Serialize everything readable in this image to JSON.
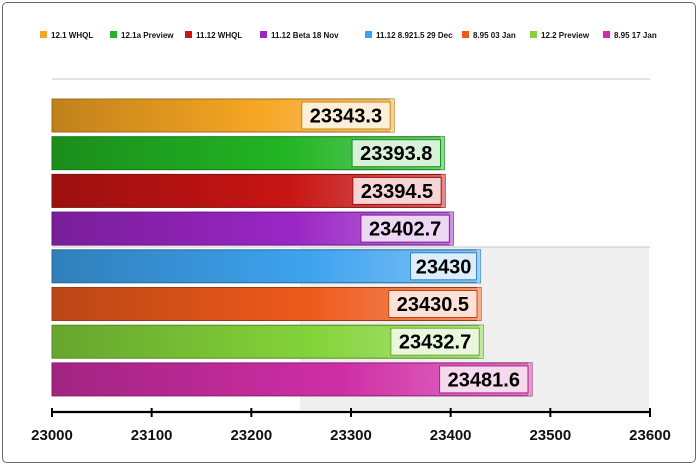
{
  "chart_data": {
    "type": "bar",
    "orientation": "horizontal",
    "title": "",
    "xlabel": "",
    "ylabel": "",
    "xlim": [
      23000,
      23600
    ],
    "x_ticks": [
      "23000",
      "23100",
      "23200",
      "23300",
      "23400",
      "23500",
      "23600"
    ],
    "legend_position": "top",
    "series": [
      {
        "name": "12.1 WHQL",
        "value": 23343.3,
        "label": "23343.3",
        "color": "#f6a623"
      },
      {
        "name": "12.1a Preview",
        "value": 23393.8,
        "label": "23393.8",
        "color": "#22b524"
      },
      {
        "name": "11.12 WHQL",
        "value": 23394.5,
        "label": "23394.5",
        "color": "#c81414"
      },
      {
        "name": "11.12 Beta 18 Nov",
        "value": 23402.7,
        "label": "23402.7",
        "color": "#9a26c4"
      },
      {
        "name": "11.12 8.921.5 29 Dec",
        "value": 23430,
        "label": "23430",
        "color": "#3ea3ef"
      },
      {
        "name": "8.95 03 Jan",
        "value": 23430.5,
        "label": "23430.5",
        "color": "#ee5a1c"
      },
      {
        "name": "12.2 Preview",
        "value": 23432.7,
        "label": "23432.7",
        "color": "#84d33a"
      },
      {
        "name": "8.95 17 Jan",
        "value": 23481.6,
        "label": "23481.6",
        "color": "#cf2ea5"
      }
    ]
  }
}
